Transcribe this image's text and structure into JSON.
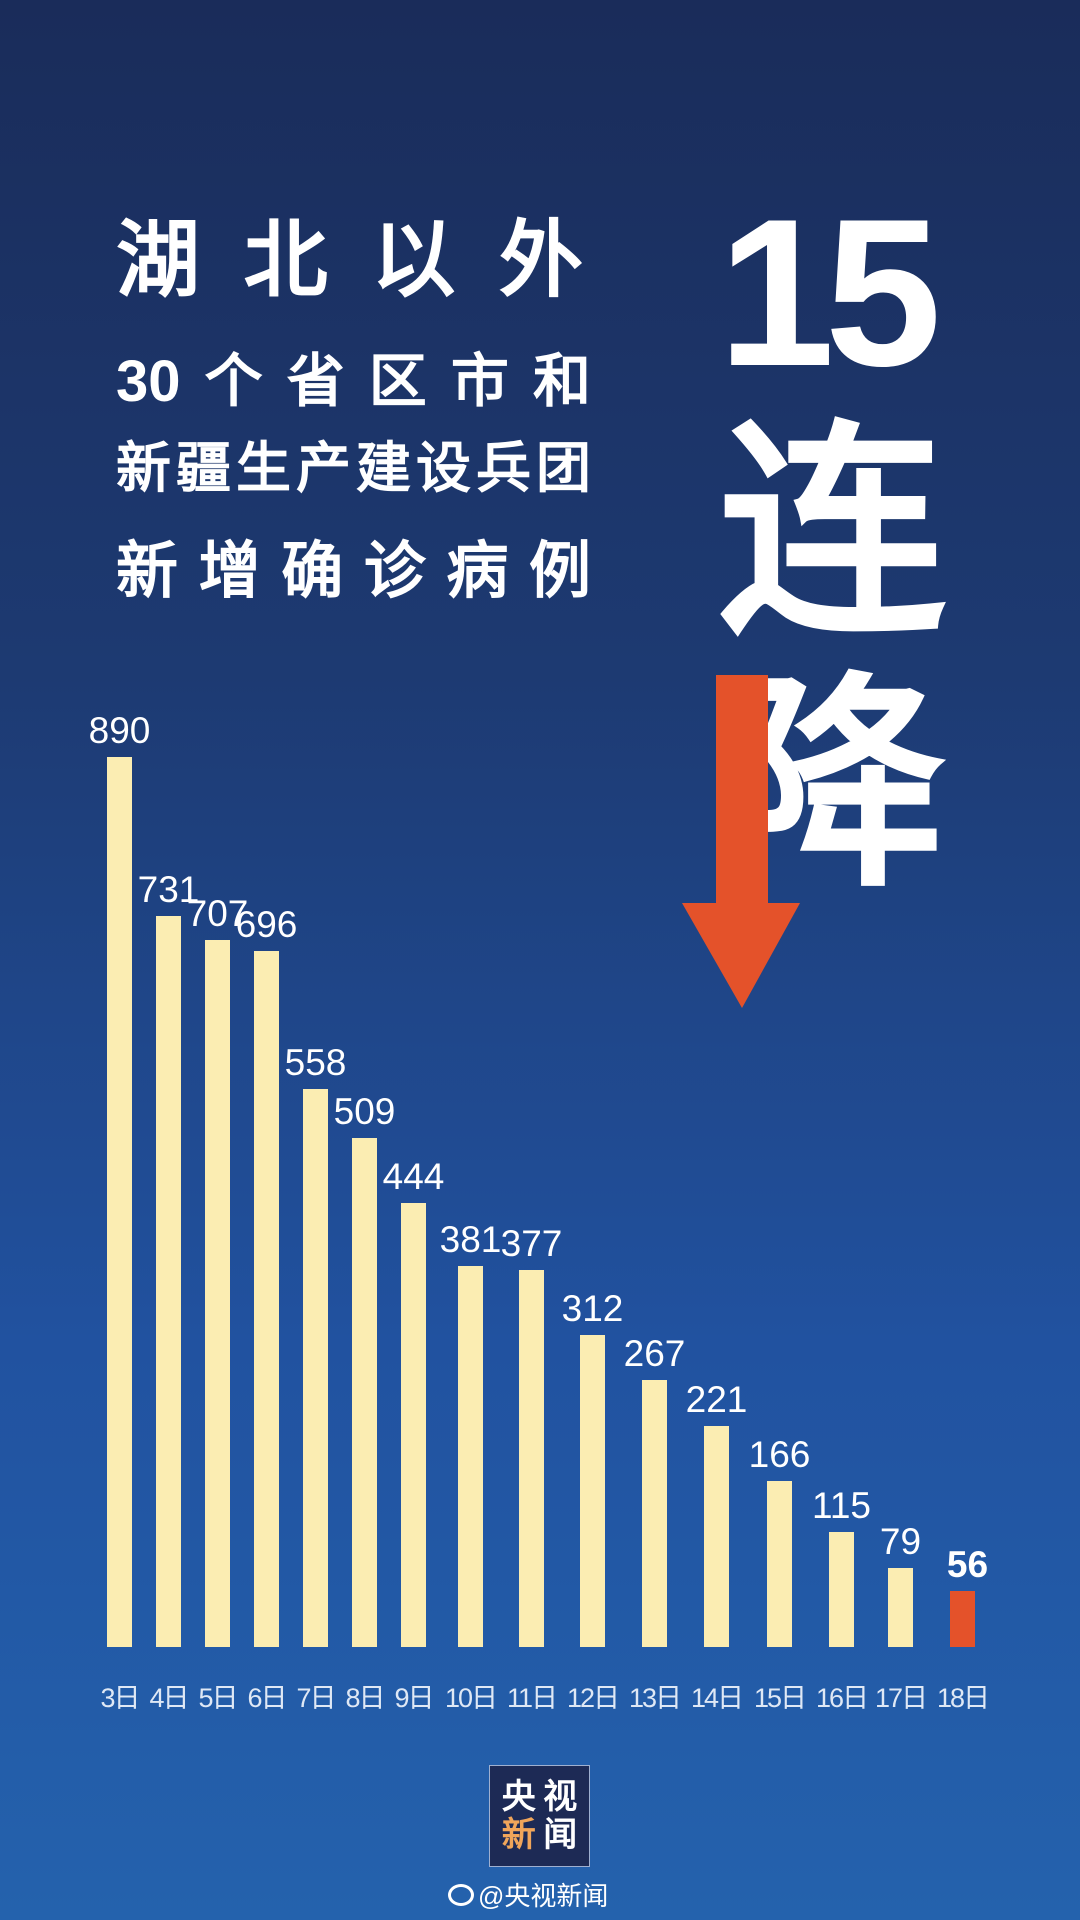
{
  "headline": {
    "line1": "湖北以外",
    "line2": "30个省区市和",
    "line3": "新疆生产建设兵团",
    "line4": "新增确诊病例"
  },
  "big_text": {
    "count": "15",
    "char1": "连",
    "char2": "降"
  },
  "colors": {
    "bar": "#fbedb2",
    "highlight": "#e4522a",
    "background_top": "#1a2c5a",
    "background_bottom": "#2462ad",
    "logo_accent": "#f0a55a"
  },
  "icons": {
    "arrow": "down-arrow-icon",
    "weibo": "weibo-icon"
  },
  "chart_data": {
    "type": "bar",
    "categories": [
      "3日",
      "4日",
      "5日",
      "6日",
      "7日",
      "8日",
      "9日",
      "10日",
      "11日",
      "12日",
      "13日",
      "14日",
      "15日",
      "16日",
      "17日",
      "18日"
    ],
    "values": [
      890,
      731,
      707,
      696,
      558,
      509,
      444,
      381,
      377,
      312,
      267,
      221,
      166,
      115,
      79,
      56
    ],
    "highlight_index": 15,
    "data_labels": true,
    "grid": false
  },
  "logo": {
    "line1a": "央",
    "line1b": "视",
    "line2a": "新",
    "line2b": "闻"
  },
  "footer": {
    "weibo_handle": "@央视新闻"
  }
}
